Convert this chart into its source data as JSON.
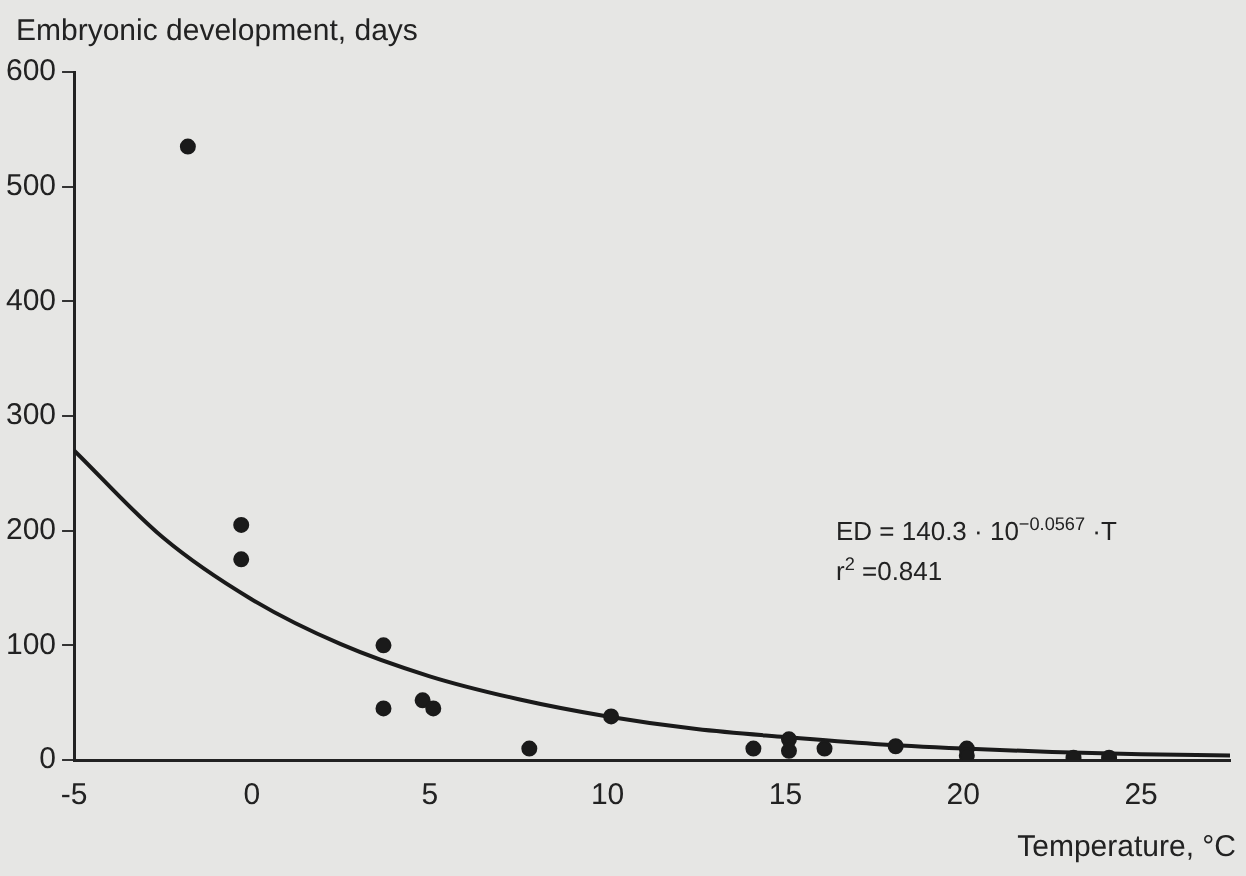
{
  "chart_data": {
    "type": "scatter",
    "xlabel": "Temperature, °C",
    "ylabel": "Embryonic development, days",
    "annotations": [
      "ED = 140.3 · 10$^{−0.0567}$ ·T",
      "r$^{2}$ =0.841"
    ],
    "xlim": [
      -5,
      27.5
    ],
    "xticks": [
      -5,
      0,
      5,
      10,
      15,
      20,
      25
    ],
    "ylim": [
      0,
      600
    ],
    "yticks": [
      0,
      100,
      200,
      300,
      400,
      500,
      600
    ],
    "grid": false,
    "legend": false,
    "series": [
      {
        "marker": "circle",
        "color": "#1a1a1a",
        "x": [
          -1.8,
          -0.3,
          -0.3,
          3.7,
          3.7,
          4.8,
          5.1,
          7.8,
          10.1,
          14.1,
          15.1,
          15.1,
          16.1,
          18.1,
          20.1,
          20.1,
          23.1,
          24.1
        ],
        "values": [
          535,
          205,
          175,
          100,
          45,
          52,
          45,
          10,
          38,
          10,
          18,
          8,
          10,
          12,
          10,
          4,
          2,
          2
        ]
      },
      {
        "type": "line",
        "color": "#1a1a1a",
        "line_style": "solid",
        "x": [
          -5,
          -2.5,
          0,
          2.5,
          5,
          7.5,
          10,
          12.5,
          15,
          17.5,
          20,
          22.5,
          25,
          27.5
        ],
        "values": [
          270,
          194,
          140,
          101,
          73,
          53,
          38,
          27,
          20,
          14,
          10,
          7,
          5,
          4
        ]
      }
    ]
  }
}
